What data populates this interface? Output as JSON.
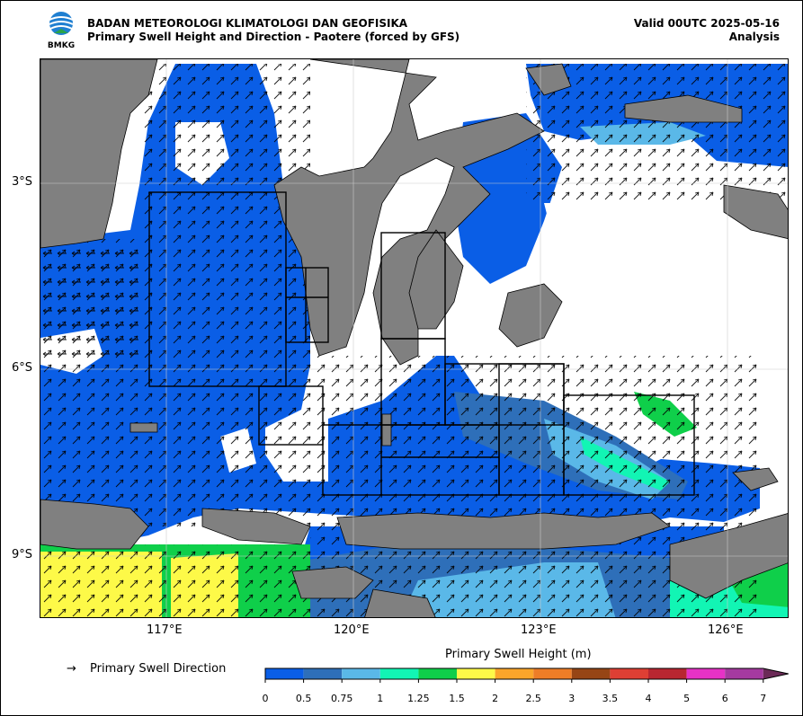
{
  "header": {
    "org": "BADAN METEOROLOGI KLIMATOLOGI DAN GEOFISIKA",
    "subtitle": "Primary Swell Height and Direction - Paotere (forced by GFS)",
    "valid": "Valid 00UTC 2025-05-16",
    "mode": "Analysis",
    "logo_text": "BMKG"
  },
  "axes": {
    "lat_labels": [
      "3°S",
      "6°S",
      "9°S"
    ],
    "lon_labels": [
      "117°E",
      "120°E",
      "123°E",
      "126°E"
    ]
  },
  "legend": {
    "arrow_symbol": "→",
    "arrow_label": "Primary Swell Direction",
    "colorbar_title": "Primary Swell Height (m)",
    "ticks": [
      "0",
      "0.5",
      "0.75",
      "1",
      "1.25",
      "1.5",
      "2",
      "2.5",
      "3",
      "3.5",
      "4",
      "5",
      "6",
      "7"
    ],
    "colors": [
      "#0a5ee6",
      "#2e6fb9",
      "#5ab8e8",
      "#12f5b4",
      "#0fcf4a",
      "#fdf948",
      "#fba52a",
      "#ee7d27",
      "#964515",
      "#de3f34",
      "#b82631",
      "#e632c6",
      "#a53aa0",
      "#6b2a57"
    ]
  },
  "colors": {
    "land": "#808080",
    "sea_low": "#0a5ee6",
    "sea_mid": "#2e6fb9",
    "sea_light": "#5ab8e8",
    "sea_cyan": "#12f5b4",
    "sea_green": "#0fcf4a",
    "sea_yellow": "#fdf948"
  }
}
